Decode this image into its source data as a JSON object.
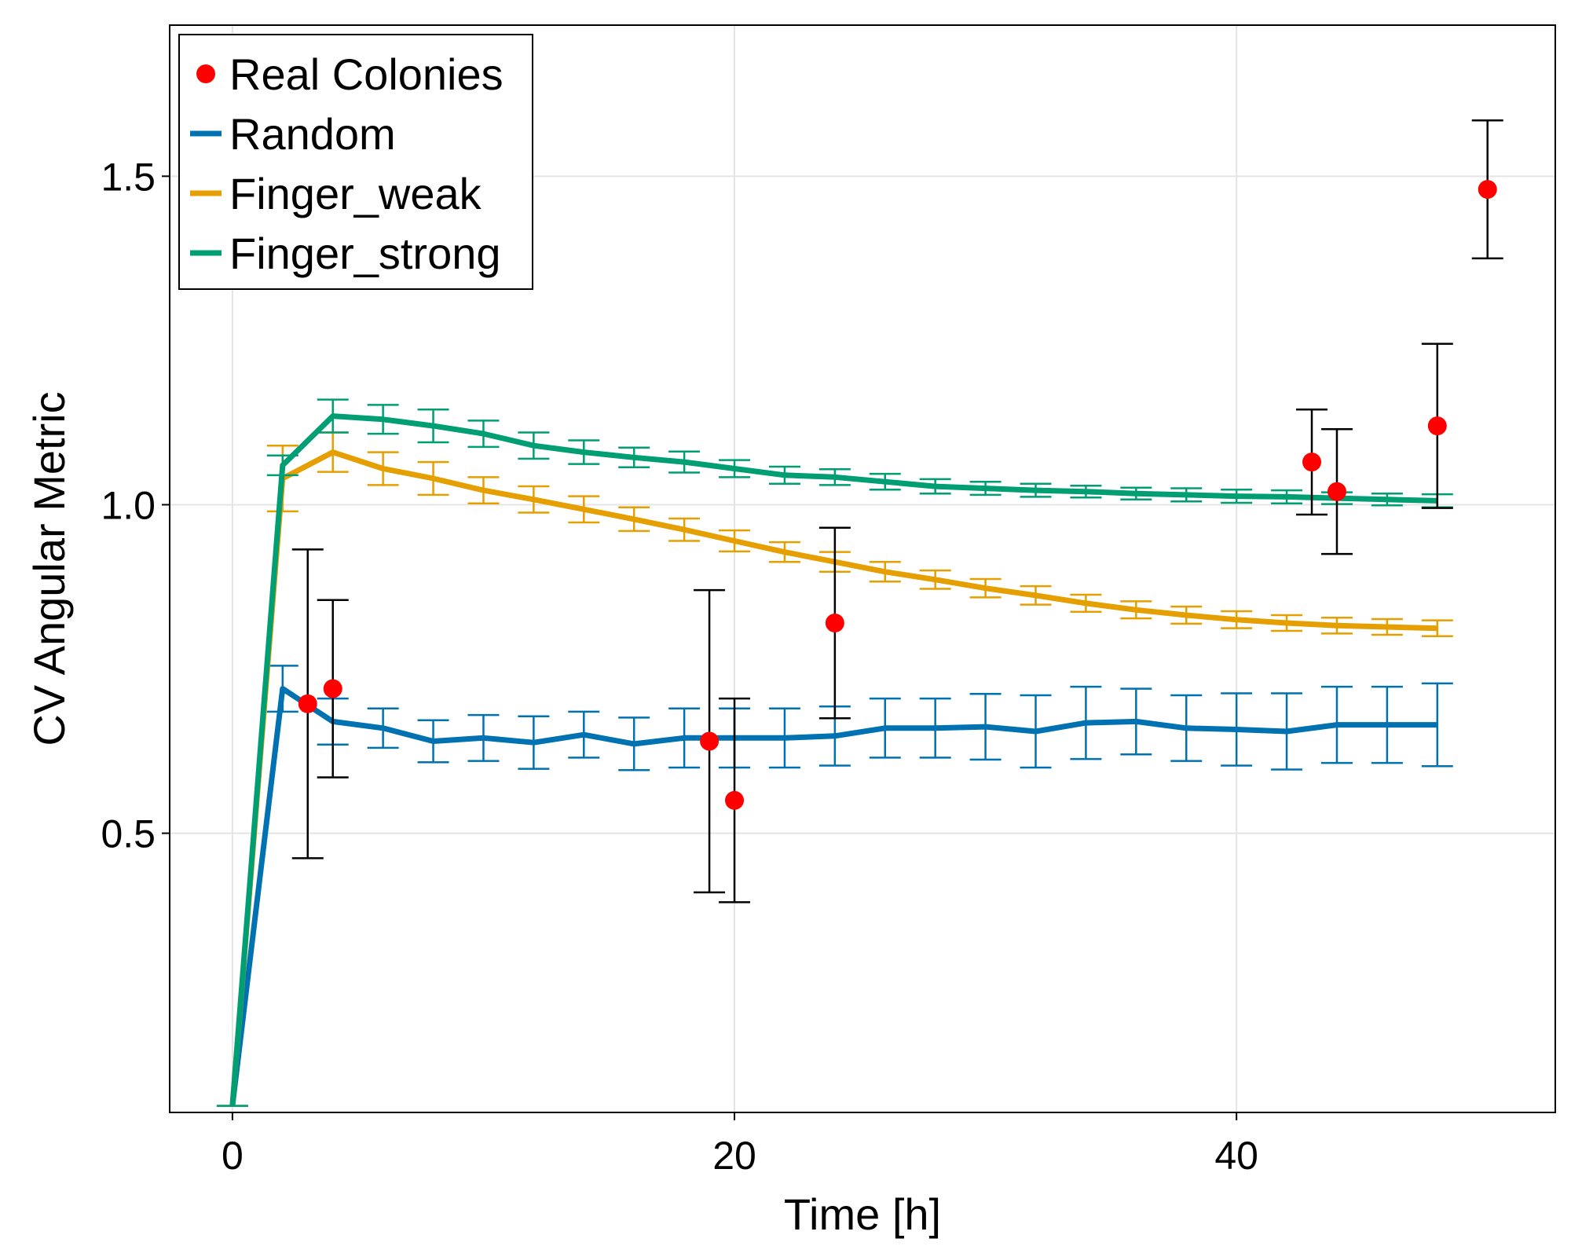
{
  "chart_data": {
    "type": "line",
    "title": "",
    "xlabel": "Time [h]",
    "ylabel": "CV Angular Metric",
    "xlim": [
      -2.5,
      52.7
    ],
    "ylim": [
      0.075,
      1.73
    ],
    "xticks": [
      0,
      20,
      40
    ],
    "yticks": [
      0.5,
      1.0,
      1.5
    ],
    "xtick_labels": [
      "0",
      "20",
      "40"
    ],
    "ytick_labels": [
      "0.5",
      "1.0",
      "1.5"
    ],
    "grid": true,
    "legend_position": "top-left",
    "x": [
      0,
      2,
      4,
      6,
      8,
      10,
      12,
      14,
      16,
      18,
      20,
      22,
      24,
      26,
      28,
      30,
      32,
      34,
      36,
      38,
      40,
      42,
      44,
      46,
      48
    ],
    "series": [
      {
        "name": "Random",
        "color": "#0072B2",
        "values": [
          0.085,
          0.72,
          0.67,
          0.66,
          0.64,
          0.645,
          0.638,
          0.65,
          0.636,
          0.645,
          0.645,
          0.645,
          0.648,
          0.66,
          0.66,
          0.662,
          0.655,
          0.668,
          0.67,
          0.66,
          0.658,
          0.655,
          0.665,
          0.665,
          0.665
        ],
        "errors": [
          0.0,
          0.035,
          0.035,
          0.03,
          0.032,
          0.035,
          0.04,
          0.035,
          0.04,
          0.045,
          0.045,
          0.045,
          0.045,
          0.045,
          0.045,
          0.05,
          0.055,
          0.055,
          0.05,
          0.05,
          0.055,
          0.058,
          0.058,
          0.058,
          0.063
        ]
      },
      {
        "name": "Finger_weak",
        "color": "#E69F00",
        "values": [
          0.085,
          1.04,
          1.08,
          1.055,
          1.04,
          1.022,
          1.008,
          0.993,
          0.978,
          0.962,
          0.945,
          0.928,
          0.913,
          0.898,
          0.886,
          0.873,
          0.862,
          0.85,
          0.84,
          0.832,
          0.825,
          0.82,
          0.816,
          0.814,
          0.812
        ],
        "errors": [
          0.0,
          0.05,
          0.03,
          0.025,
          0.025,
          0.02,
          0.02,
          0.02,
          0.018,
          0.017,
          0.016,
          0.015,
          0.015,
          0.015,
          0.014,
          0.014,
          0.014,
          0.013,
          0.013,
          0.013,
          0.013,
          0.012,
          0.012,
          0.012,
          0.012
        ]
      },
      {
        "name": "Finger_strong",
        "color": "#009E73",
        "values": [
          0.085,
          1.06,
          1.135,
          1.13,
          1.12,
          1.108,
          1.09,
          1.08,
          1.072,
          1.065,
          1.055,
          1.045,
          1.042,
          1.035,
          1.028,
          1.025,
          1.022,
          1.02,
          1.017,
          1.015,
          1.013,
          1.012,
          1.01,
          1.008,
          1.006
        ],
        "errors": [
          0.0,
          0.015,
          0.025,
          0.022,
          0.025,
          0.02,
          0.02,
          0.018,
          0.015,
          0.016,
          0.013,
          0.013,
          0.012,
          0.012,
          0.011,
          0.01,
          0.01,
          0.009,
          0.009,
          0.01,
          0.01,
          0.01,
          0.009,
          0.009,
          0.01
        ]
      }
    ],
    "points": {
      "name": "Real Colonies",
      "color": "#FF0000",
      "data": [
        {
          "x": 3,
          "y": 0.697,
          "err": 0.235
        },
        {
          "x": 4,
          "y": 0.72,
          "err": 0.135
        },
        {
          "x": 19,
          "y": 0.64,
          "err": 0.23
        },
        {
          "x": 20,
          "y": 0.55,
          "err": 0.155
        },
        {
          "x": 24,
          "y": 0.82,
          "err": 0.145
        },
        {
          "x": 43,
          "y": 1.065,
          "err": 0.08
        },
        {
          "x": 44,
          "y": 1.02,
          "err": 0.095
        },
        {
          "x": 48,
          "y": 1.12,
          "err": 0.125
        },
        {
          "x": 50,
          "y": 1.48,
          "err": 0.105
        }
      ]
    }
  }
}
